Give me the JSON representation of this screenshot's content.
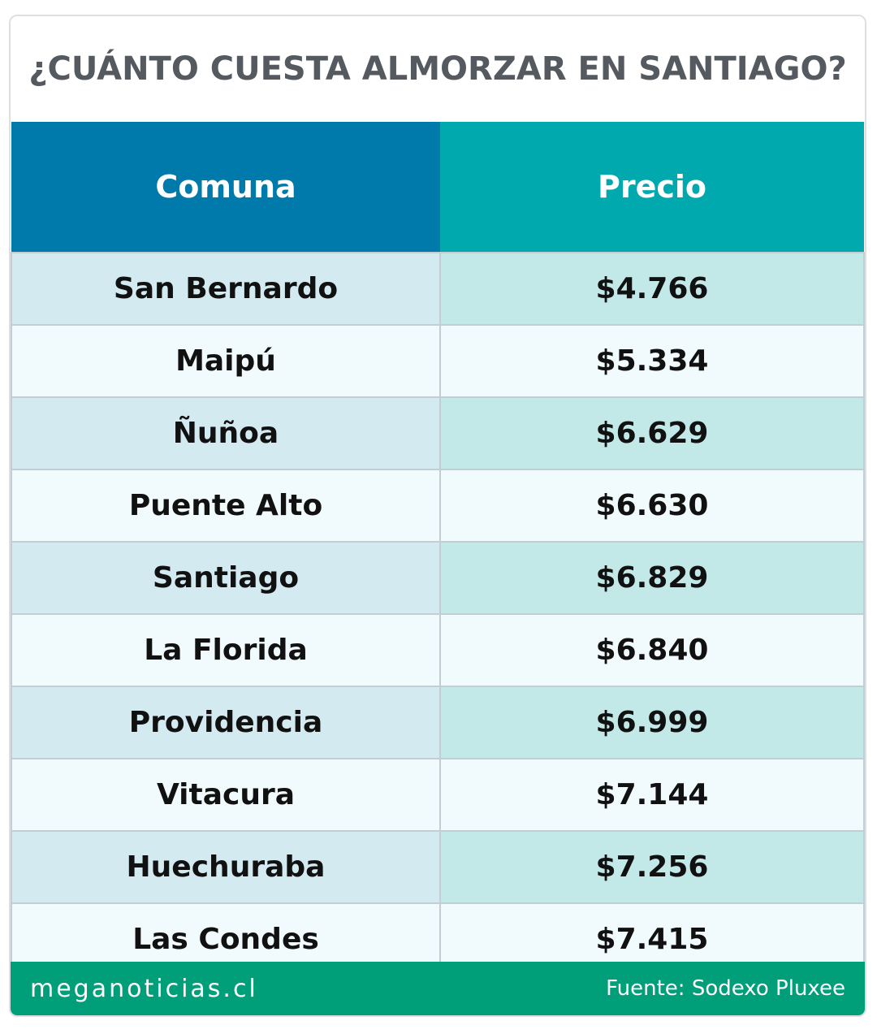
{
  "header": {
    "title": "¿CUÁNTO CUESTA ALMORZAR EN SANTIAGO?"
  },
  "table": {
    "columns": [
      "Comuna",
      "Precio"
    ],
    "rows": [
      [
        "San Bernardo",
        "$4.766"
      ],
      [
        "Maipú",
        "$5.334"
      ],
      [
        "Ñuñoa",
        "$6.629"
      ],
      [
        "Puente Alto",
        "$6.630"
      ],
      [
        "Santiago",
        "$6.829"
      ],
      [
        "La Florida",
        "$6.840"
      ],
      [
        "Providencia",
        "$6.999"
      ],
      [
        "Vitacura",
        "$7.144"
      ],
      [
        "Huechuraba",
        "$7.256"
      ],
      [
        "Las Condes",
        "$7.415"
      ]
    ]
  },
  "footer": {
    "site": "meganoticias.cl",
    "source": "Fuente: Sodexo Pluxee"
  }
}
